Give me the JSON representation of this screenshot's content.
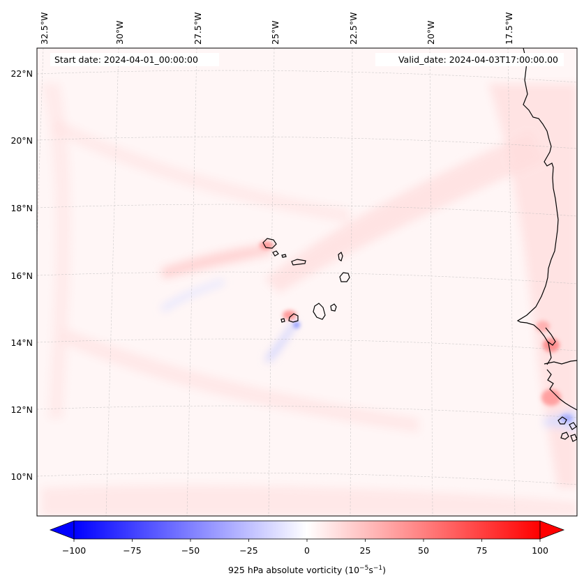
{
  "map": {
    "title_left": "Start date: 2024-04-01_00:00:00",
    "title_right": "Valid_date: 2024-04-03T17:00:00.00",
    "longitude_labels": [
      "32.5°W",
      "30°W",
      "27.5°W",
      "25°W",
      "22.5°W",
      "20°W",
      "17.5°W"
    ],
    "latitude_labels": [
      "22°N",
      "20°N",
      "18°N",
      "16°N",
      "14°N",
      "12°N",
      "10°N"
    ],
    "features": [
      "Cabo Verde islands",
      "West African coastline"
    ]
  },
  "colorbar": {
    "ticks": [
      "−100",
      "−75",
      "−50",
      "−25",
      "0",
      "25",
      "50",
      "75",
      "100"
    ],
    "label": "925 hPa absolute vorticity (10",
    "label_exp1": "−5",
    "label_mid": "s",
    "label_exp2": "−1",
    "label_end": ")",
    "vmin": -100,
    "vmax": 100,
    "colors": {
      "low": "#0000ff",
      "mid": "#ffffff",
      "high": "#ff0000"
    }
  }
}
